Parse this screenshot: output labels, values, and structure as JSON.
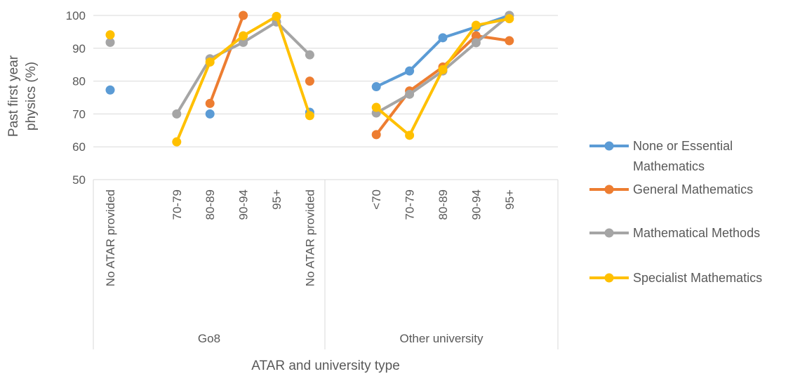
{
  "chart_data": {
    "type": "line",
    "title": "",
    "xlabel": "ATAR and university type",
    "ylabel_lines": [
      "Past first year",
      "physics (%)"
    ],
    "ylim": [
      50,
      100
    ],
    "yticks": [
      50,
      60,
      70,
      80,
      90,
      100
    ],
    "grid": true,
    "legend_position": "right",
    "groups": [
      {
        "label": "Go8",
        "categories": [
          "No ATAR provided",
          "",
          "70-79",
          "80-89",
          "90-94",
          "95+"
        ]
      },
      {
        "label": "Other university",
        "categories": [
          "No ATAR provided",
          "",
          "<70",
          "70-79",
          "80-89",
          "90-94",
          "95+"
        ]
      }
    ],
    "series": [
      {
        "name": "None or Essential Mathematics",
        "legend_lines": [
          "None or Essential",
          "Mathematics"
        ],
        "color": "#5B9BD5",
        "values": [
          77.3,
          null,
          null,
          70,
          null,
          null,
          70.5,
          null,
          78.3,
          83.1,
          93.2,
          96.5,
          100
        ]
      },
      {
        "name": "General Mathematics",
        "legend_lines": [
          "General Mathematics"
        ],
        "color": "#ED7D31",
        "values": [
          null,
          null,
          null,
          73.2,
          100,
          null,
          80,
          null,
          63.7,
          77,
          84.3,
          93.8,
          92.3
        ]
      },
      {
        "name": "Mathematical Methods",
        "legend_lines": [
          "Mathematical Methods"
        ],
        "color": "#A5A5A5",
        "values": [
          91.8,
          null,
          70,
          86.8,
          91.8,
          98,
          88,
          null,
          70.3,
          76,
          83.1,
          91.7,
          100
        ]
      },
      {
        "name": "Specialist Mathematics",
        "legend_lines": [
          "Specialist Mathematics"
        ],
        "color": "#FFC000",
        "values": [
          94.1,
          null,
          61.5,
          85.8,
          93.8,
          99.7,
          69.5,
          null,
          72,
          63.5,
          83.5,
          97,
          99
        ]
      }
    ]
  }
}
